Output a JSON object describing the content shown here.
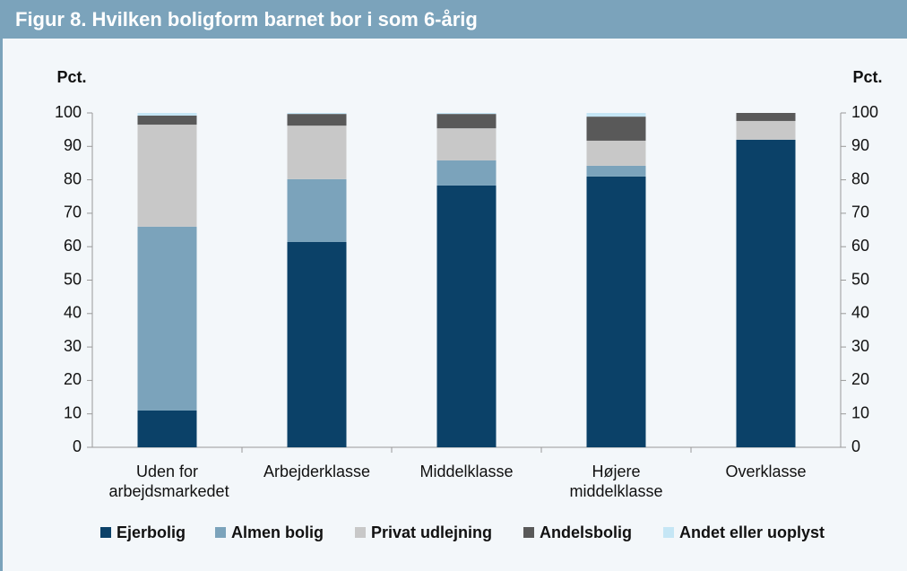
{
  "chart_data": {
    "type": "stacked_bar",
    "title": "Figur 8. Hvilken boligform barnet bor i som 6-årig",
    "y_label": "Pct.",
    "categories": [
      "Uden for arbejdsmarkedet",
      "Arbejderklasse",
      "Middelklasse",
      "Højere middelklasse",
      "Overklasse"
    ],
    "series": [
      {
        "name": "Ejerbolig",
        "color": "#0b4168",
        "values": [
          11,
          61.4,
          78.3,
          81,
          92
        ]
      },
      {
        "name": "Almen bolig",
        "color": "#7ba3bb",
        "values": [
          55,
          18.8,
          7.5,
          3.2,
          0
        ]
      },
      {
        "name": "Privat udlejning",
        "color": "#c8c8c8",
        "values": [
          30.5,
          16,
          9.6,
          7.5,
          5.6
        ]
      },
      {
        "name": "Andelsbolig",
        "color": "#595959",
        "values": [
          2.7,
          3.5,
          4.3,
          7.2,
          2.4
        ]
      },
      {
        "name": "Andet eller uoplyst",
        "color": "#c5e6f5",
        "values": [
          0.8,
          0.3,
          0.3,
          1.1,
          0
        ]
      }
    ],
    "ylim": [
      0,
      100
    ],
    "yticks": [
      0,
      10,
      20,
      30,
      40,
      50,
      60,
      70,
      80,
      90,
      100
    ]
  }
}
